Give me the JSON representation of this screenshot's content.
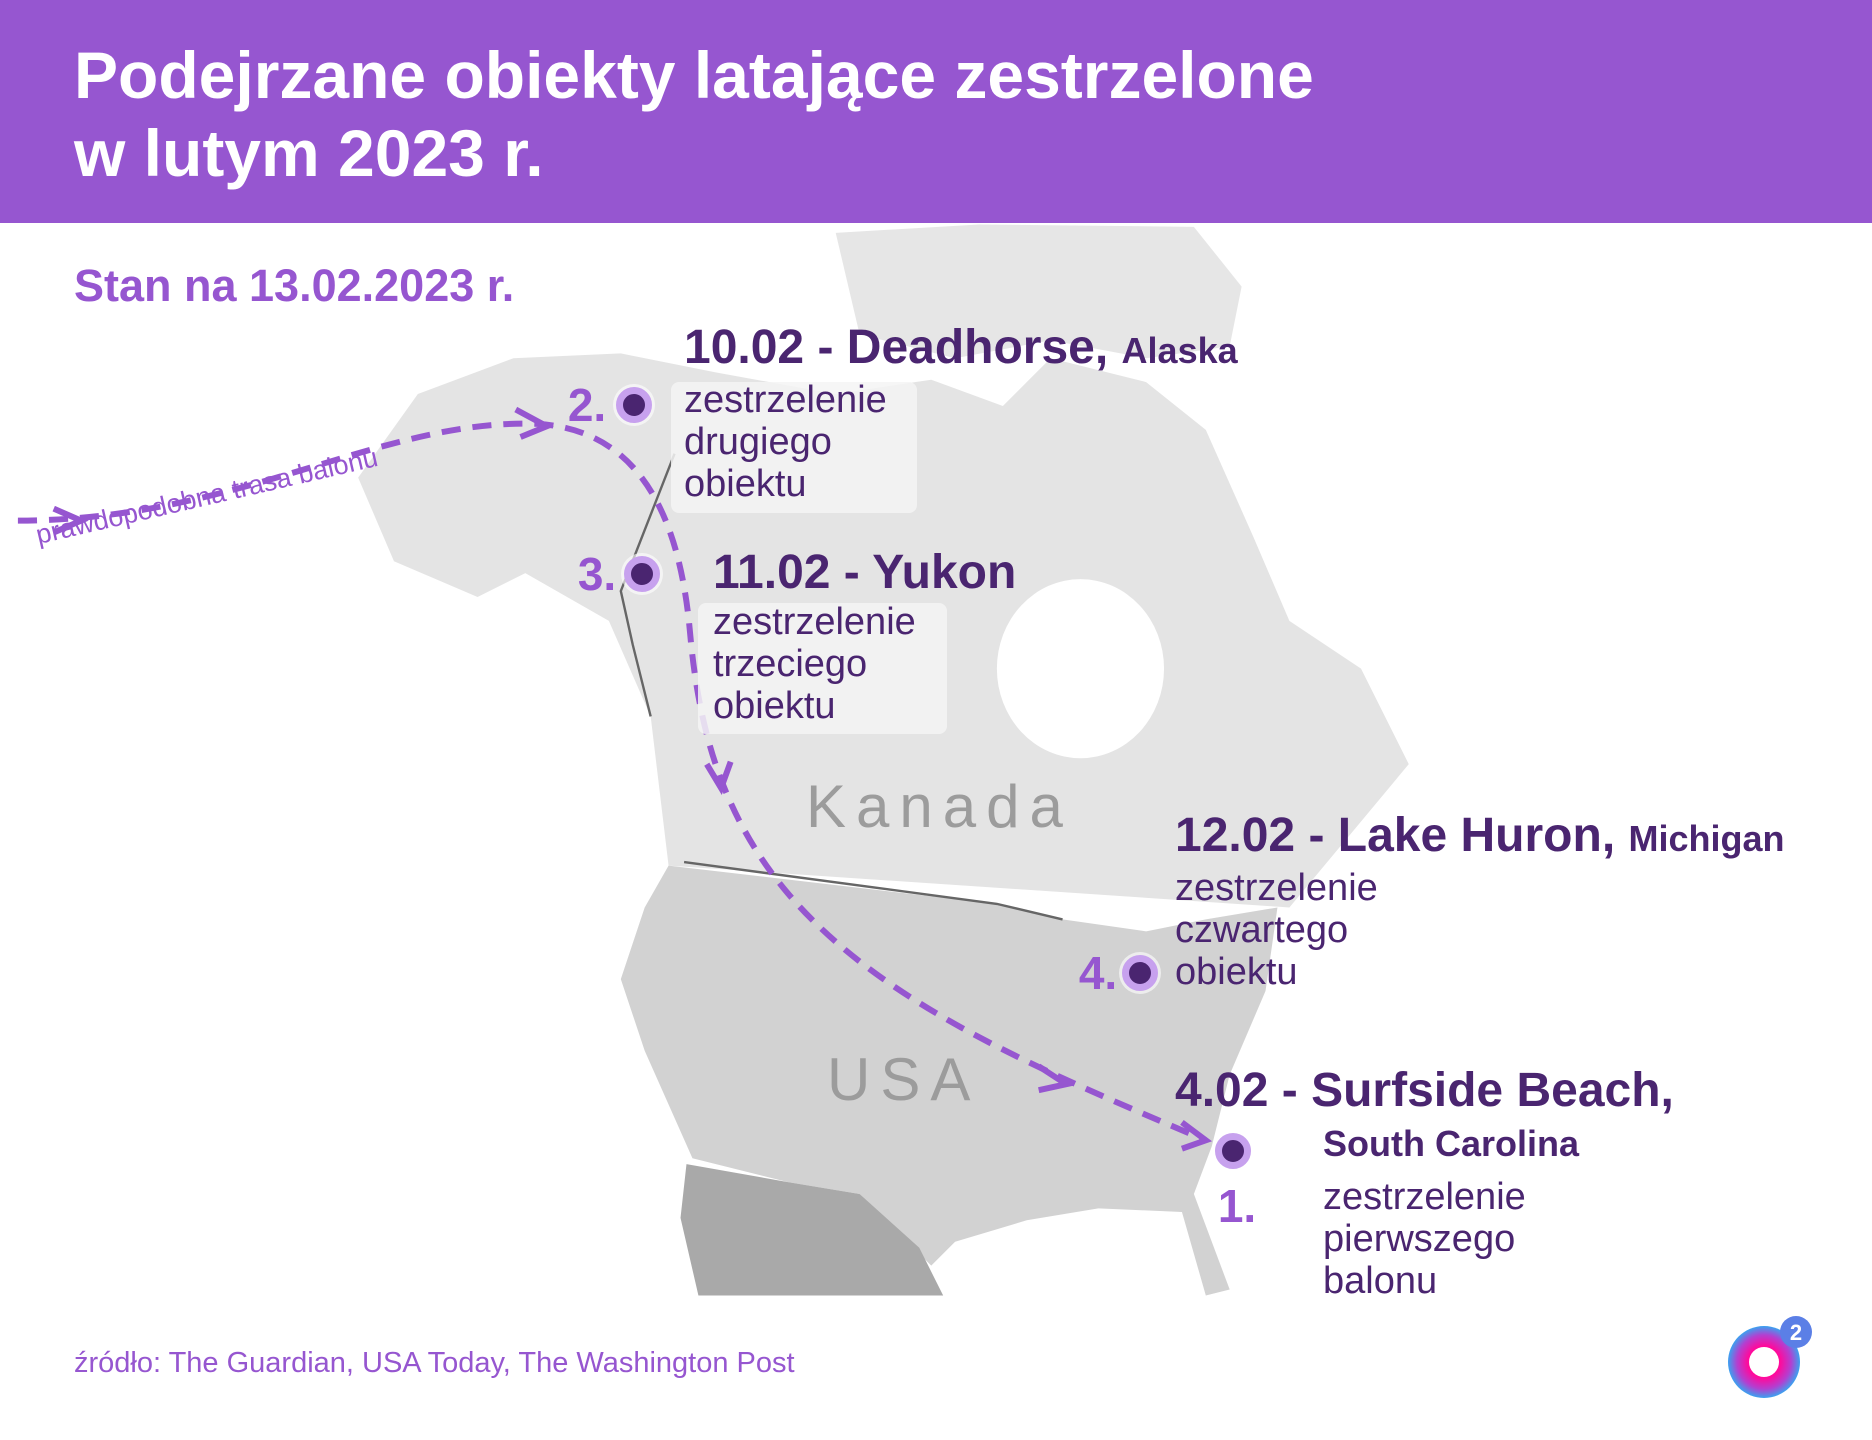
{
  "header": {
    "title_line1": "Podejrzane obiekty latające zestrzelone",
    "title_line2": "w lutym 2023 r."
  },
  "subtitle": "Stan na 13.02.2023 r.",
  "map": {
    "countries": [
      "Kanada",
      "USA"
    ],
    "route_label": "prawdopodobna trasa balonu",
    "colors": {
      "accent": "#9656d0",
      "dark": "#4a2570",
      "canada": "#e4e4e4",
      "usa": "#d2d2d2",
      "mexico": "#a9a9a9"
    }
  },
  "events": [
    {
      "number": "1.",
      "date_place": "4.02 - Surfside Beach,",
      "region": "South Carolina",
      "desc": [
        "zestrzelenie",
        "pierwszego",
        "balonu"
      ]
    },
    {
      "number": "2.",
      "date_place": "10.02 - Deadhorse,",
      "region": "Alaska",
      "desc": [
        "zestrzelenie",
        "drugiego",
        "obiektu"
      ]
    },
    {
      "number": "3.",
      "date_place": "11.02 - Yukon",
      "region": "",
      "desc": [
        "zestrzelenie",
        "trzeciego",
        "obiektu"
      ]
    },
    {
      "number": "4.",
      "date_place": "12.02 - Lake Huron,",
      "region": "Michigan",
      "desc": [
        "zestrzelenie",
        "czwartego",
        "obiektu"
      ]
    }
  ],
  "source": "źródło: The Guardian, USA Today, The Washington Post",
  "logo": {
    "text": "o2",
    "superscript": "2"
  }
}
